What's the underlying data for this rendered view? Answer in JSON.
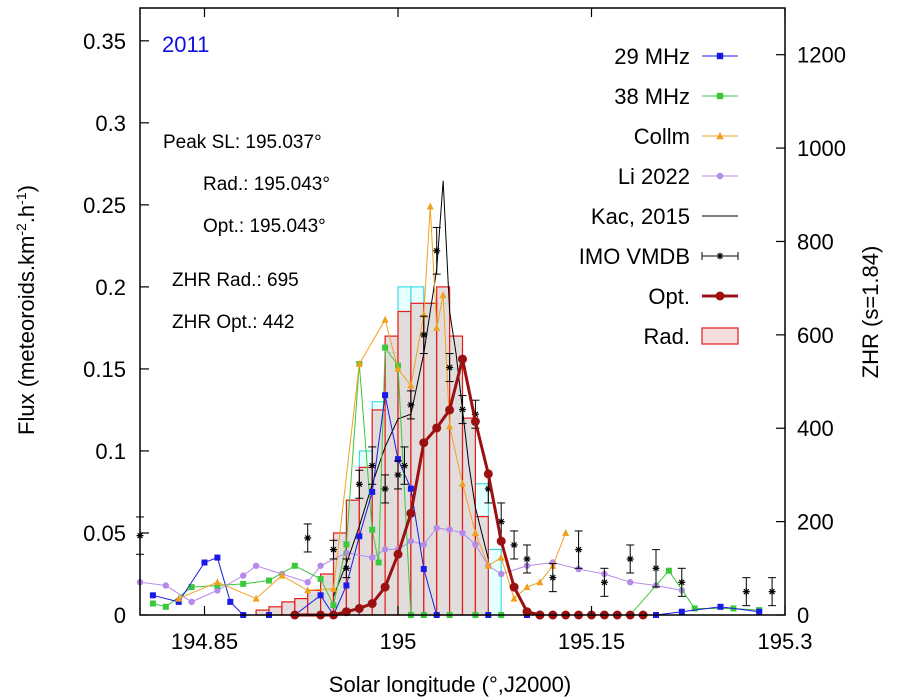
{
  "chart_data": {
    "type": "line",
    "year_label": "2011",
    "xlabel": "Solar longitude (°,J2000)",
    "ylabel": "Flux (meteoroids.km",
    "ylabel_sup1": "-2",
    "ylabel_mid": ".h",
    "ylabel_sup2": "-1",
    "ylabel_end": ")",
    "y2label": "ZHR (s=1.84)",
    "xlim": [
      194.8,
      195.3
    ],
    "ylim": [
      0,
      0.37
    ],
    "y2lim": [
      0,
      1300
    ],
    "xticks": [
      194.85,
      195,
      195.15,
      195.3
    ],
    "xtick_labels": [
      "194.85",
      "195",
      "195.15",
      "195.3"
    ],
    "yticks": [
      0,
      0.05,
      0.1,
      0.15,
      0.2,
      0.25,
      0.3,
      0.35
    ],
    "ytick_labels": [
      "0",
      "0.05",
      "0.1",
      "0.15",
      "0.2",
      "0.25",
      "0.3",
      "0.35"
    ],
    "y2ticks": [
      0,
      200,
      400,
      600,
      800,
      1000,
      1200
    ],
    "y2tick_labels": [
      "0",
      "200",
      "400",
      "600",
      "800",
      "1000",
      "1200"
    ],
    "annotations": {
      "peak_sl": "Peak SL: 195.037°",
      "rad": "Rad.: 195.043°",
      "opt": "Opt.: 195.043°",
      "zhr_rad": "ZHR Rad.: 695",
      "zhr_opt": "ZHR Opt.: 442"
    },
    "legend": [
      {
        "key": "s29",
        "label": "29 MHz",
        "color": "#1a1ae6"
      },
      {
        "key": "s38",
        "label": "38 MHz",
        "color": "#3cc83c"
      },
      {
        "key": "collm",
        "label": "Collm",
        "color": "#f0a21e"
      },
      {
        "key": "li",
        "label": "Li 2022",
        "color": "#b68ae8"
      },
      {
        "key": "kac",
        "label": "Kac, 2015",
        "color": "#000000"
      },
      {
        "key": "imo",
        "label": "IMO VMDB",
        "color": "#000000"
      },
      {
        "key": "opt",
        "label": "Opt.",
        "color": "#9b1010"
      },
      {
        "key": "rad",
        "label": "Rad.",
        "color": "#e31a1a"
      }
    ],
    "series": [
      {
        "name": "Rad. (cyan)",
        "axis": "y",
        "type": "histogram",
        "bin_width": 0.01,
        "x": [
          194.93,
          194.94,
          194.95,
          194.96,
          194.97,
          194.98,
          194.99,
          195.0,
          195.01,
          195.02,
          195.03,
          195.04,
          195.05,
          195.06,
          195.07
        ],
        "y": [
          0.012,
          0.02,
          0.045,
          0.07,
          0.1,
          0.13,
          0.16,
          0.2,
          0.2,
          0.19,
          0.19,
          0.15,
          0.12,
          0.08,
          0.04
        ]
      },
      {
        "name": "Rad.",
        "axis": "y",
        "type": "histogram",
        "bin_width": 0.01,
        "x": [
          194.89,
          194.9,
          194.91,
          194.92,
          194.93,
          194.94,
          194.95,
          194.96,
          194.97,
          194.98,
          194.99,
          195.0,
          195.01,
          195.02,
          195.03,
          195.04,
          195.05,
          195.06
        ],
        "y": [
          0.003,
          0.005,
          0.008,
          0.01,
          0.015,
          0.025,
          0.05,
          0.07,
          0.09,
          0.125,
          0.17,
          0.185,
          0.19,
          0.19,
          0.2,
          0.17,
          0.12,
          0.06
        ]
      },
      {
        "name": "Kac, 2015",
        "axis": "y2",
        "type": "line",
        "x": [
          194.95,
          194.96,
          194.97,
          194.98,
          194.99,
          195.0,
          195.01,
          195.02,
          195.03,
          195.035,
          195.04,
          195.045,
          195.05,
          195.055,
          195.06,
          195.07
        ],
        "y": [
          40,
          110,
          190,
          280,
          360,
          420,
          430,
          560,
          740,
          930,
          650,
          560,
          440,
          320,
          230,
          120
        ]
      },
      {
        "name": "29 MHz",
        "axis": "y",
        "type": "line",
        "x": [
          194.81,
          194.83,
          194.85,
          194.86,
          194.87,
          194.88,
          194.9,
          194.92,
          194.94,
          194.95,
          194.96,
          194.97,
          194.98,
          194.99,
          195.0,
          195.01,
          195.02,
          195.03,
          195.07,
          195.1,
          195.14,
          195.18,
          195.2,
          195.22,
          195.25,
          195.28
        ],
        "y": [
          0.012,
          0.008,
          0.032,
          0.035,
          0.008,
          0.0,
          0.0,
          0.0,
          0.012,
          0.0,
          0.018,
          0.048,
          0.075,
          0.134,
          0.095,
          0.077,
          0.028,
          0.0,
          0.0,
          0.0,
          0.0,
          0.0,
          0.0,
          0.002,
          0.005,
          0.002
        ]
      },
      {
        "name": "38 MHz",
        "axis": "y",
        "type": "line",
        "x": [
          194.81,
          194.82,
          194.84,
          194.86,
          194.88,
          194.9,
          194.92,
          194.94,
          194.95,
          194.96,
          194.97,
          194.98,
          194.985,
          194.99,
          195.0,
          195.01,
          195.02,
          195.04,
          195.06,
          195.08,
          195.1,
          195.14,
          195.18,
          195.21,
          195.23,
          195.26,
          195.28
        ],
        "y": [
          0.007,
          0.005,
          0.017,
          0.018,
          0.019,
          0.021,
          0.03,
          0.022,
          0.006,
          0.043,
          0.153,
          0.052,
          0.032,
          0.163,
          0.152,
          0.0,
          0.0,
          0.0,
          0.0,
          0.0,
          0.0,
          0.0,
          0.0,
          0.027,
          0.004,
          0.004,
          0.003
        ]
      },
      {
        "name": "Collm",
        "axis": "y",
        "type": "line",
        "x": [
          194.83,
          194.86,
          194.89,
          194.91,
          194.93,
          194.95,
          194.97,
          194.99,
          195.0,
          195.01,
          195.02,
          195.025,
          195.03,
          195.035,
          195.04,
          195.05,
          195.06,
          195.07,
          195.08,
          195.09,
          195.1,
          195.11,
          195.12,
          195.13
        ],
        "y": [
          0.01,
          0.02,
          0.01,
          0.024,
          0.015,
          0.016,
          0.153,
          0.18,
          0.15,
          0.14,
          0.183,
          0.249,
          0.175,
          0.195,
          0.115,
          0.08,
          0.05,
          0.03,
          0.035,
          0.01,
          0.017,
          0.02,
          0.03,
          0.05
        ]
      },
      {
        "name": "Li 2022",
        "axis": "y",
        "type": "line",
        "x": [
          194.8,
          194.82,
          194.84,
          194.86,
          194.88,
          194.89,
          194.91,
          194.93,
          194.94,
          194.96,
          194.98,
          194.99,
          195.0,
          195.01,
          195.02,
          195.03,
          195.04,
          195.05,
          195.06,
          195.07,
          195.08,
          195.1,
          195.12,
          195.14,
          195.16,
          195.18,
          195.2,
          195.22
        ],
        "y": [
          0.02,
          0.018,
          0.008,
          0.015,
          0.024,
          0.03,
          0.025,
          0.02,
          0.03,
          0.038,
          0.035,
          0.04,
          0.04,
          0.045,
          0.043,
          0.053,
          0.052,
          0.05,
          0.043,
          0.03,
          0.025,
          0.03,
          0.032,
          0.028,
          0.025,
          0.02,
          0.018,
          0.015
        ]
      },
      {
        "name": "IMO VMDB",
        "axis": "y2",
        "type": "errorbar",
        "x": [
          194.8,
          194.93,
          194.95,
          194.96,
          194.97,
          194.98,
          194.99,
          195.0,
          195.005,
          195.01,
          195.02,
          195.03,
          195.04,
          195.05,
          195.06,
          195.07,
          195.08,
          195.09,
          195.1,
          195.12,
          195.14,
          195.16,
          195.18,
          195.2,
          195.22,
          195.27,
          195.29
        ],
        "y": [
          170,
          165,
          140,
          100,
          280,
          320,
          270,
          300,
          320,
          450,
          600,
          780,
          530,
          440,
          430,
          270,
          200,
          150,
          120,
          80,
          140,
          70,
          120,
          100,
          70,
          50,
          50
        ],
        "err": [
          40,
          30,
          20,
          20,
          30,
          40,
          30,
          30,
          40,
          30,
          40,
          50,
          30,
          30,
          30,
          30,
          40,
          30,
          30,
          30,
          40,
          30,
          30,
          40,
          30,
          30,
          30
        ]
      },
      {
        "name": "Opt.",
        "axis": "y",
        "type": "line",
        "x": [
          194.92,
          194.94,
          194.95,
          194.96,
          194.97,
          194.98,
          194.99,
          195.0,
          195.01,
          195.02,
          195.03,
          195.04,
          195.05,
          195.06,
          195.07,
          195.08,
          195.09,
          195.1,
          195.11
        ],
        "y": [
          0.0,
          0.0,
          0.0,
          0.002,
          0.004,
          0.007,
          0.017,
          0.037,
          0.062,
          0.105,
          0.114,
          0.125,
          0.156,
          0.118,
          0.086,
          0.045,
          0.017,
          0.002,
          0.0
        ]
      },
      {
        "name": "Opt. (zero level)",
        "axis": "y",
        "type": "points",
        "x": [
          195.11,
          195.12,
          195.13,
          195.14,
          195.15,
          195.16,
          195.17,
          195.18,
          195.19
        ],
        "y": [
          0,
          0,
          0,
          0,
          0,
          0,
          0,
          0,
          0
        ]
      }
    ]
  }
}
